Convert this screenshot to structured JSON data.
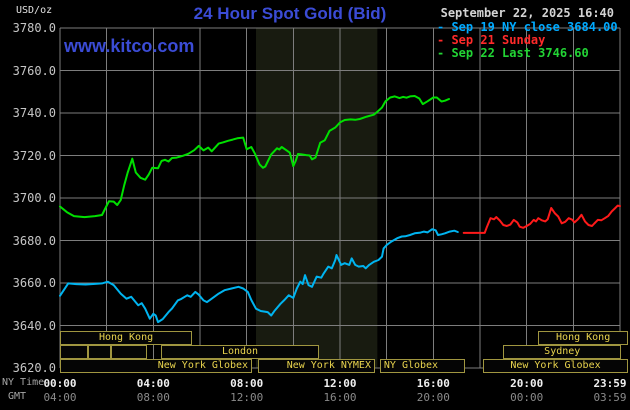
{
  "header": {
    "unit_label": "USD/oz",
    "title": "24 Hour Spot Gold (Bid)",
    "datetime": "September 22, 2025 16:40",
    "watermark": "www.kitco.com",
    "legend": [
      {
        "dash": "-",
        "label": "Sep 19 NY close 3684.00",
        "color": "#00aaff"
      },
      {
        "dash": "-",
        "label": "Sep 21 Sunday",
        "color": "#ff2a2a"
      },
      {
        "dash": "-",
        "label": "Sep 22 Last 3746.60",
        "color": "#22d435"
      }
    ]
  },
  "axis": {
    "ny_time_label": "NY Time",
    "gmt_label": "GMT"
  },
  "colors": {
    "background": "#000000",
    "grid": "#7d7d7d",
    "band": "#181b10",
    "title_blue": "#3b4cd6",
    "watermark_blue": "#3b4cd6",
    "date_text": "#d4d4d4",
    "y_axis_text": "#c6c6c6",
    "ny_tick_text": "#f0f0f0",
    "gmt_tick_text": "#8a8a8a",
    "caption_text": "#a6a6a6",
    "unit_text": "#e2e2e2",
    "session_border": "#a09640",
    "session_text": "#e9d44e"
  },
  "sessions": {
    "boxes": [
      {
        "row": 0,
        "from": 0.0,
        "to": 5.66,
        "label": "Hong Kong",
        "align": "center"
      },
      {
        "row": 0,
        "from": 20.5,
        "to": 24.34,
        "label": "Hong Kong",
        "align": "center"
      },
      {
        "row": 1,
        "from": 0.0,
        "to": 1.2,
        "label": "",
        "align": "center"
      },
      {
        "row": 1,
        "from": 1.2,
        "to": 2.19,
        "label": "",
        "align": "center"
      },
      {
        "row": 1,
        "from": 2.19,
        "to": 3.73,
        "label": "",
        "align": "center"
      },
      {
        "row": 1,
        "from": 4.33,
        "to": 11.1,
        "label": "London",
        "align": "center"
      },
      {
        "row": 1,
        "from": 19.0,
        "to": 24.05,
        "label": "Sydney",
        "align": "center"
      },
      {
        "row": 2,
        "from": 0.0,
        "to": 8.23,
        "label": "New York Globex",
        "align": "right"
      },
      {
        "row": 2,
        "from": 8.49,
        "to": 13.5,
        "label": "New York NYMEX",
        "align": "right"
      },
      {
        "row": 2,
        "from": 13.71,
        "to": 17.36,
        "label": "NY Globex",
        "align": "left"
      },
      {
        "row": 2,
        "from": 18.13,
        "to": 24.34,
        "label": "New York Globex",
        "align": "center"
      }
    ]
  },
  "chart_data": {
    "type": "line",
    "title": "24 Hour Spot Gold (Bid)",
    "xlabel": "NY Time (hours)",
    "ylabel": "USD/oz",
    "xlim": [
      0,
      24
    ],
    "ylim": [
      3620,
      3780
    ],
    "x_grid_step_hours": 2,
    "y_grid_step": 20,
    "grid": true,
    "band": {
      "from": 8.4,
      "to": 13.6,
      "meaning": "NYMEX floor session highlight"
    },
    "y_ticks": [
      {
        "v": 3780,
        "label": "3780.0"
      },
      {
        "v": 3760,
        "label": "3760.0"
      },
      {
        "v": 3740,
        "label": "3740.0"
      },
      {
        "v": 3720,
        "label": "3720.0"
      },
      {
        "v": 3700,
        "label": "3700.0"
      },
      {
        "v": 3680,
        "label": "3680.0"
      },
      {
        "v": 3660,
        "label": "3660.0"
      },
      {
        "v": 3640,
        "label": "3640.0"
      },
      {
        "v": 3620,
        "label": "3620.0"
      }
    ],
    "x_ticks": [
      {
        "t": 0,
        "ny": "00:00",
        "gmt": "04:00"
      },
      {
        "t": 4,
        "ny": "04:00",
        "gmt": "08:00"
      },
      {
        "t": 8,
        "ny": "08:00",
        "gmt": "12:00"
      },
      {
        "t": 12,
        "ny": "12:00",
        "gmt": "16:00"
      },
      {
        "t": 16,
        "ny": "16:00",
        "gmt": "20:00"
      },
      {
        "t": 20,
        "ny": "20:00",
        "gmt": "00:00"
      },
      {
        "t": 23.983,
        "ny": "23:59",
        "gmt": "03:59"
      }
    ],
    "series": [
      {
        "name": "Sep 19 NY close",
        "color": "#00b4f0",
        "close": 3684.0,
        "points": [
          [
            0,
            3654
          ],
          [
            0.35,
            3659.8
          ],
          [
            0.7,
            3659.5
          ],
          [
            1.1,
            3659.3
          ],
          [
            1.5,
            3659.6
          ],
          [
            1.8,
            3659.8
          ],
          [
            2.05,
            3660.6
          ],
          [
            2.3,
            3659
          ],
          [
            2.6,
            3655
          ],
          [
            2.85,
            3652.6
          ],
          [
            3.05,
            3653.5
          ],
          [
            3.35,
            3649.5
          ],
          [
            3.5,
            3650.5
          ],
          [
            3.65,
            3647.9
          ],
          [
            3.85,
            3643.2
          ],
          [
            4,
            3645.5
          ],
          [
            4.1,
            3644.7
          ],
          [
            4.2,
            3641.6
          ],
          [
            4.4,
            3643
          ],
          [
            4.65,
            3646.3
          ],
          [
            4.8,
            3648
          ],
          [
            5.05,
            3651.8
          ],
          [
            5.2,
            3652.5
          ],
          [
            5.45,
            3654.2
          ],
          [
            5.6,
            3653.5
          ],
          [
            5.8,
            3655.8
          ],
          [
            5.95,
            3654.5
          ],
          [
            6.15,
            3651.8
          ],
          [
            6.3,
            3651
          ],
          [
            6.5,
            3652.6
          ],
          [
            6.8,
            3655
          ],
          [
            7.05,
            3656.6
          ],
          [
            7.35,
            3657.4
          ],
          [
            7.65,
            3658.2
          ],
          [
            7.85,
            3657.4
          ],
          [
            8.05,
            3655.8
          ],
          [
            8.2,
            3652
          ],
          [
            8.4,
            3647.9
          ],
          [
            8.6,
            3646.8
          ],
          [
            8.9,
            3646.3
          ],
          [
            9.05,
            3644.7
          ],
          [
            9.2,
            3647
          ],
          [
            9.45,
            3650.2
          ],
          [
            9.6,
            3651.8
          ],
          [
            9.8,
            3654.2
          ],
          [
            10,
            3653
          ],
          [
            10.15,
            3657.4
          ],
          [
            10.3,
            3660.6
          ],
          [
            10.4,
            3659.5
          ],
          [
            10.5,
            3663.7
          ],
          [
            10.65,
            3659
          ],
          [
            10.8,
            3658.2
          ],
          [
            11,
            3663
          ],
          [
            11.2,
            3662.5
          ],
          [
            11.3,
            3664.5
          ],
          [
            11.5,
            3667.7
          ],
          [
            11.65,
            3666.9
          ],
          [
            11.8,
            3670.8
          ],
          [
            11.85,
            3673.2
          ],
          [
            12.05,
            3668.5
          ],
          [
            12.2,
            3669.3
          ],
          [
            12.4,
            3668.5
          ],
          [
            12.5,
            3671.6
          ],
          [
            12.65,
            3668.5
          ],
          [
            12.8,
            3667.7
          ],
          [
            13,
            3668
          ],
          [
            13.1,
            3666.9
          ],
          [
            13.25,
            3668.5
          ],
          [
            13.45,
            3670
          ],
          [
            13.65,
            3670.8
          ],
          [
            13.8,
            3672.4
          ],
          [
            13.87,
            3676.3
          ],
          [
            14,
            3677.9
          ],
          [
            14.2,
            3679.5
          ],
          [
            14.45,
            3681.1
          ],
          [
            14.65,
            3681.9
          ],
          [
            14.8,
            3682
          ],
          [
            15,
            3682.6
          ],
          [
            15.2,
            3683.4
          ],
          [
            15.45,
            3683.7
          ],
          [
            15.6,
            3684.2
          ],
          [
            15.75,
            3683.8
          ],
          [
            15.95,
            3685.3
          ],
          [
            16.1,
            3684.8
          ],
          [
            16.2,
            3682.6
          ],
          [
            16.35,
            3682.9
          ],
          [
            16.5,
            3683.4
          ],
          [
            16.7,
            3684.2
          ],
          [
            16.9,
            3684.6
          ],
          [
            17.05,
            3684
          ]
        ]
      },
      {
        "name": "Sep 21 Sunday",
        "color": "#ff1a1a",
        "points": [
          [
            17.3,
            3683.6
          ],
          [
            17.6,
            3683.6
          ],
          [
            17.9,
            3683.6
          ],
          [
            18.2,
            3683.6
          ],
          [
            18.3,
            3686.5
          ],
          [
            18.45,
            3690.5
          ],
          [
            18.6,
            3690
          ],
          [
            18.7,
            3691
          ],
          [
            18.85,
            3689.4
          ],
          [
            19,
            3687.3
          ],
          [
            19.15,
            3686.8
          ],
          [
            19.3,
            3687.5
          ],
          [
            19.45,
            3689.7
          ],
          [
            19.6,
            3688.5
          ],
          [
            19.7,
            3686.5
          ],
          [
            19.85,
            3686
          ],
          [
            20,
            3686.8
          ],
          [
            20.15,
            3687.8
          ],
          [
            20.3,
            3689.7
          ],
          [
            20.4,
            3689
          ],
          [
            20.5,
            3690.5
          ],
          [
            20.65,
            3689.5
          ],
          [
            20.8,
            3689
          ],
          [
            20.9,
            3690
          ],
          [
            21.05,
            3695.3
          ],
          [
            21.2,
            3692.9
          ],
          [
            21.35,
            3691.3
          ],
          [
            21.5,
            3688.1
          ],
          [
            21.65,
            3688.8
          ],
          [
            21.8,
            3690.5
          ],
          [
            21.95,
            3689.8
          ],
          [
            22.05,
            3688.5
          ],
          [
            22.2,
            3690
          ],
          [
            22.35,
            3692.1
          ],
          [
            22.5,
            3689
          ],
          [
            22.65,
            3687.3
          ],
          [
            22.8,
            3686.8
          ],
          [
            22.9,
            3688
          ],
          [
            23.05,
            3689.7
          ],
          [
            23.2,
            3689.5
          ],
          [
            23.35,
            3690.5
          ],
          [
            23.5,
            3691.6
          ],
          [
            23.65,
            3693.7
          ],
          [
            23.8,
            3695.3
          ],
          [
            23.9,
            3696.4
          ],
          [
            24,
            3696.2
          ]
        ]
      },
      {
        "name": "Sep 22 Last",
        "color": "#00e000",
        "last": 3746.6,
        "points": [
          [
            0,
            3696
          ],
          [
            0.3,
            3693.3
          ],
          [
            0.6,
            3691.5
          ],
          [
            1.05,
            3691
          ],
          [
            1.5,
            3691.5
          ],
          [
            1.8,
            3692
          ],
          [
            1.95,
            3695.3
          ],
          [
            2.1,
            3698.5
          ],
          [
            2.3,
            3698.3
          ],
          [
            2.45,
            3696.7
          ],
          [
            2.6,
            3699
          ],
          [
            2.75,
            3706
          ],
          [
            2.9,
            3712
          ],
          [
            3.1,
            3718.5
          ],
          [
            3.25,
            3712
          ],
          [
            3.45,
            3709.5
          ],
          [
            3.65,
            3708.6
          ],
          [
            3.8,
            3711
          ],
          [
            3.95,
            3714.2
          ],
          [
            4.2,
            3714
          ],
          [
            4.35,
            3717.4
          ],
          [
            4.5,
            3718
          ],
          [
            4.65,
            3717.2
          ],
          [
            4.8,
            3718.8
          ],
          [
            5,
            3719
          ],
          [
            5.25,
            3719.8
          ],
          [
            5.5,
            3720.8
          ],
          [
            5.75,
            3722.5
          ],
          [
            5.95,
            3724.5
          ],
          [
            6.15,
            3722.4
          ],
          [
            6.35,
            3723.7
          ],
          [
            6.5,
            3722
          ],
          [
            6.8,
            3725.6
          ],
          [
            7,
            3726.2
          ],
          [
            7.2,
            3726.9
          ],
          [
            7.4,
            3727.5
          ],
          [
            7.6,
            3728.1
          ],
          [
            7.85,
            3728.4
          ],
          [
            8,
            3722.9
          ],
          [
            8.1,
            3723.5
          ],
          [
            8.2,
            3724
          ],
          [
            8.35,
            3721
          ],
          [
            8.55,
            3715.8
          ],
          [
            8.7,
            3714.2
          ],
          [
            8.8,
            3714.8
          ],
          [
            9.05,
            3720.5
          ],
          [
            9.3,
            3723.4
          ],
          [
            9.4,
            3722.8
          ],
          [
            9.5,
            3724
          ],
          [
            9.7,
            3722.5
          ],
          [
            9.85,
            3721.3
          ],
          [
            10,
            3715
          ],
          [
            10.1,
            3717.5
          ],
          [
            10.2,
            3720.7
          ],
          [
            10.35,
            3720.5
          ],
          [
            10.55,
            3720.2
          ],
          [
            10.7,
            3720
          ],
          [
            10.8,
            3718.2
          ],
          [
            10.95,
            3719
          ],
          [
            11.15,
            3726
          ],
          [
            11.35,
            3727.2
          ],
          [
            11.55,
            3731.6
          ],
          [
            11.8,
            3733.2
          ],
          [
            12,
            3735.6
          ],
          [
            12.2,
            3736.7
          ],
          [
            12.45,
            3737
          ],
          [
            12.65,
            3736.8
          ],
          [
            12.85,
            3737.2
          ],
          [
            13.15,
            3738.3
          ],
          [
            13.45,
            3739.2
          ],
          [
            13.65,
            3741.1
          ],
          [
            13.8,
            3742.6
          ],
          [
            13.95,
            3745.5
          ],
          [
            14.15,
            3747.3
          ],
          [
            14.35,
            3747.8
          ],
          [
            14.55,
            3747
          ],
          [
            14.7,
            3747.6
          ],
          [
            14.85,
            3747.2
          ],
          [
            15,
            3747.8
          ],
          [
            15.2,
            3748
          ],
          [
            15.4,
            3746.8
          ],
          [
            15.55,
            3744.2
          ],
          [
            15.75,
            3745.5
          ],
          [
            16,
            3747.3
          ],
          [
            16.15,
            3747.3
          ],
          [
            16.35,
            3745.4
          ],
          [
            16.5,
            3745.8
          ],
          [
            16.67,
            3746.6
          ]
        ]
      }
    ]
  }
}
